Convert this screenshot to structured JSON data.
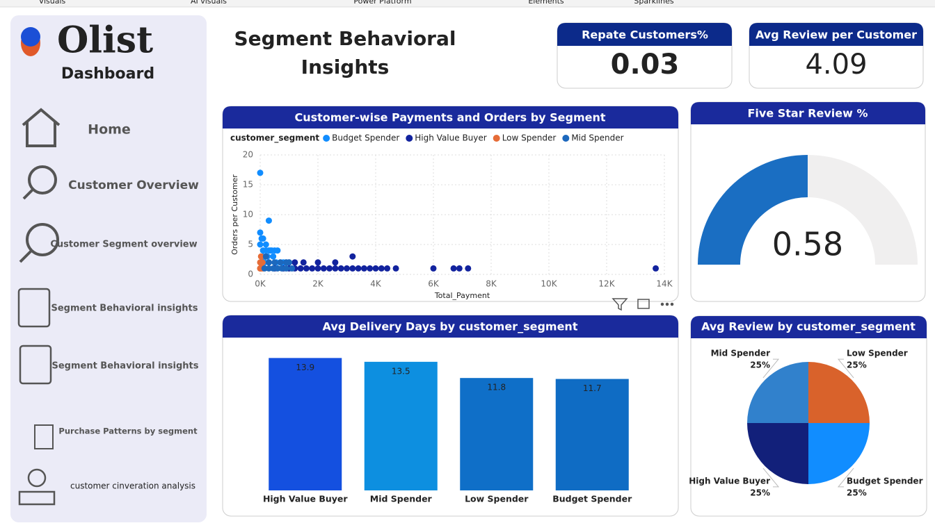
{
  "ribbon": [
    "Visuals",
    "AI visuals",
    "Power Platform",
    "Elements",
    "Sparklines"
  ],
  "sidebar": {
    "logo": "Olist",
    "subtitle": "Dashboard",
    "nav": [
      "Home",
      "Customer Overview",
      "Customer Segment overview",
      "Segment Behavioral insights",
      "Segment Behavioral insights",
      "Purchase Patterns by segment",
      "customer cinveration analysis"
    ]
  },
  "page_title": [
    "Segment Behavioral",
    "Insights"
  ],
  "kpis": [
    {
      "title": "Repate Customers%",
      "value": 0.03
    },
    {
      "title": "Avg Review per Customer",
      "value": 4.09
    }
  ],
  "chart_data": [
    {
      "type": "scatter",
      "title": "Customer-wise Payments and Orders by Segment",
      "legend_title": "customer_segment",
      "xlabel": "Total_Payment",
      "ylabel": "Orders per Customer",
      "xlim": [
        0,
        14000
      ],
      "ylim": [
        0,
        20
      ],
      "xticks": [
        {
          "value": 0,
          "label": "0K"
        },
        {
          "value": 2000,
          "label": "2K"
        },
        {
          "value": 4000,
          "label": "4K"
        },
        {
          "value": 6000,
          "label": "6K"
        },
        {
          "value": 8000,
          "label": "8K"
        },
        {
          "value": 10000,
          "label": "10K"
        },
        {
          "value": 12000,
          "label": "12K"
        },
        {
          "value": 14000,
          "label": "14K"
        }
      ],
      "yticks": [
        0,
        5,
        10,
        15,
        20
      ],
      "grid": true,
      "series": [
        {
          "name": "Budget Spender",
          "color": "#118dff",
          "x": [
            0,
            300,
            0,
            50,
            100,
            200,
            0,
            350,
            100,
            200,
            300,
            400,
            500,
            600,
            250,
            450,
            700,
            800,
            900,
            150,
            300,
            550,
            100
          ],
          "values": [
            17,
            9,
            7,
            6,
            6,
            5,
            5,
            4,
            4,
            4,
            4,
            4,
            4,
            4,
            3,
            3,
            2,
            2,
            2,
            2,
            2,
            2,
            3
          ]
        },
        {
          "name": "High Value Buyer",
          "color": "#12239e",
          "x": [
            500,
            800,
            1000,
            1200,
            1400,
            1600,
            1800,
            2000,
            2200,
            2400,
            2600,
            2800,
            3000,
            3200,
            3400,
            3600,
            3800,
            4000,
            4200,
            4400,
            4700,
            6000,
            6700,
            6900,
            7200,
            13700,
            3200,
            2000,
            2600,
            1500,
            1200,
            1000
          ],
          "values": [
            1,
            1,
            1,
            1,
            1,
            1,
            1,
            1,
            1,
            1,
            1,
            1,
            1,
            1,
            1,
            1,
            1,
            1,
            1,
            1,
            1,
            1,
            1,
            1,
            1,
            1,
            3,
            2,
            2,
            2,
            2,
            2
          ]
        },
        {
          "name": "Low Spender",
          "color": "#e66c37",
          "x": [
            0,
            0,
            50,
            100,
            30,
            80,
            0
          ],
          "values": [
            1,
            2,
            1,
            1,
            3,
            2,
            1
          ]
        },
        {
          "name": "Mid Spender",
          "color": "#1c68bd",
          "x": [
            150,
            300,
            450,
            600,
            750,
            900,
            1100,
            300,
            500,
            700,
            900,
            1000,
            200
          ],
          "values": [
            1,
            1,
            1,
            1,
            1,
            1,
            1,
            2,
            2,
            2,
            2,
            2,
            3
          ]
        }
      ]
    },
    {
      "type": "gauge",
      "title": "Five Star Review %",
      "value": 0.58,
      "ylim": [
        0,
        1.16
      ],
      "color": "#1a6ec2",
      "track_color": "#f0efef"
    },
    {
      "type": "bar",
      "title": "Avg Delivery Days by customer_segment",
      "categories": [
        "High Value Buyer",
        "Mid Spender",
        "Low Spender",
        "Budget Spender"
      ],
      "values": [
        13.9,
        13.5,
        11.8,
        11.7
      ],
      "colors": [
        "#1450e0",
        "#0d8fe0",
        "#0f6fc8",
        "#0f6cc4"
      ],
      "ylim": [
        0,
        14
      ]
    },
    {
      "type": "pie",
      "title": "Avg Review by customer_segment",
      "categories": [
        "Low Spender",
        "Budget Spender",
        "High Value Buyer",
        "Mid Spender"
      ],
      "values": [
        25,
        25,
        25,
        25
      ],
      "value_labels": [
        "25%",
        "25%",
        "25%",
        "25%"
      ],
      "colors": [
        "#d9622b",
        "#118dff",
        "#12207a",
        "#3181cc"
      ]
    }
  ]
}
